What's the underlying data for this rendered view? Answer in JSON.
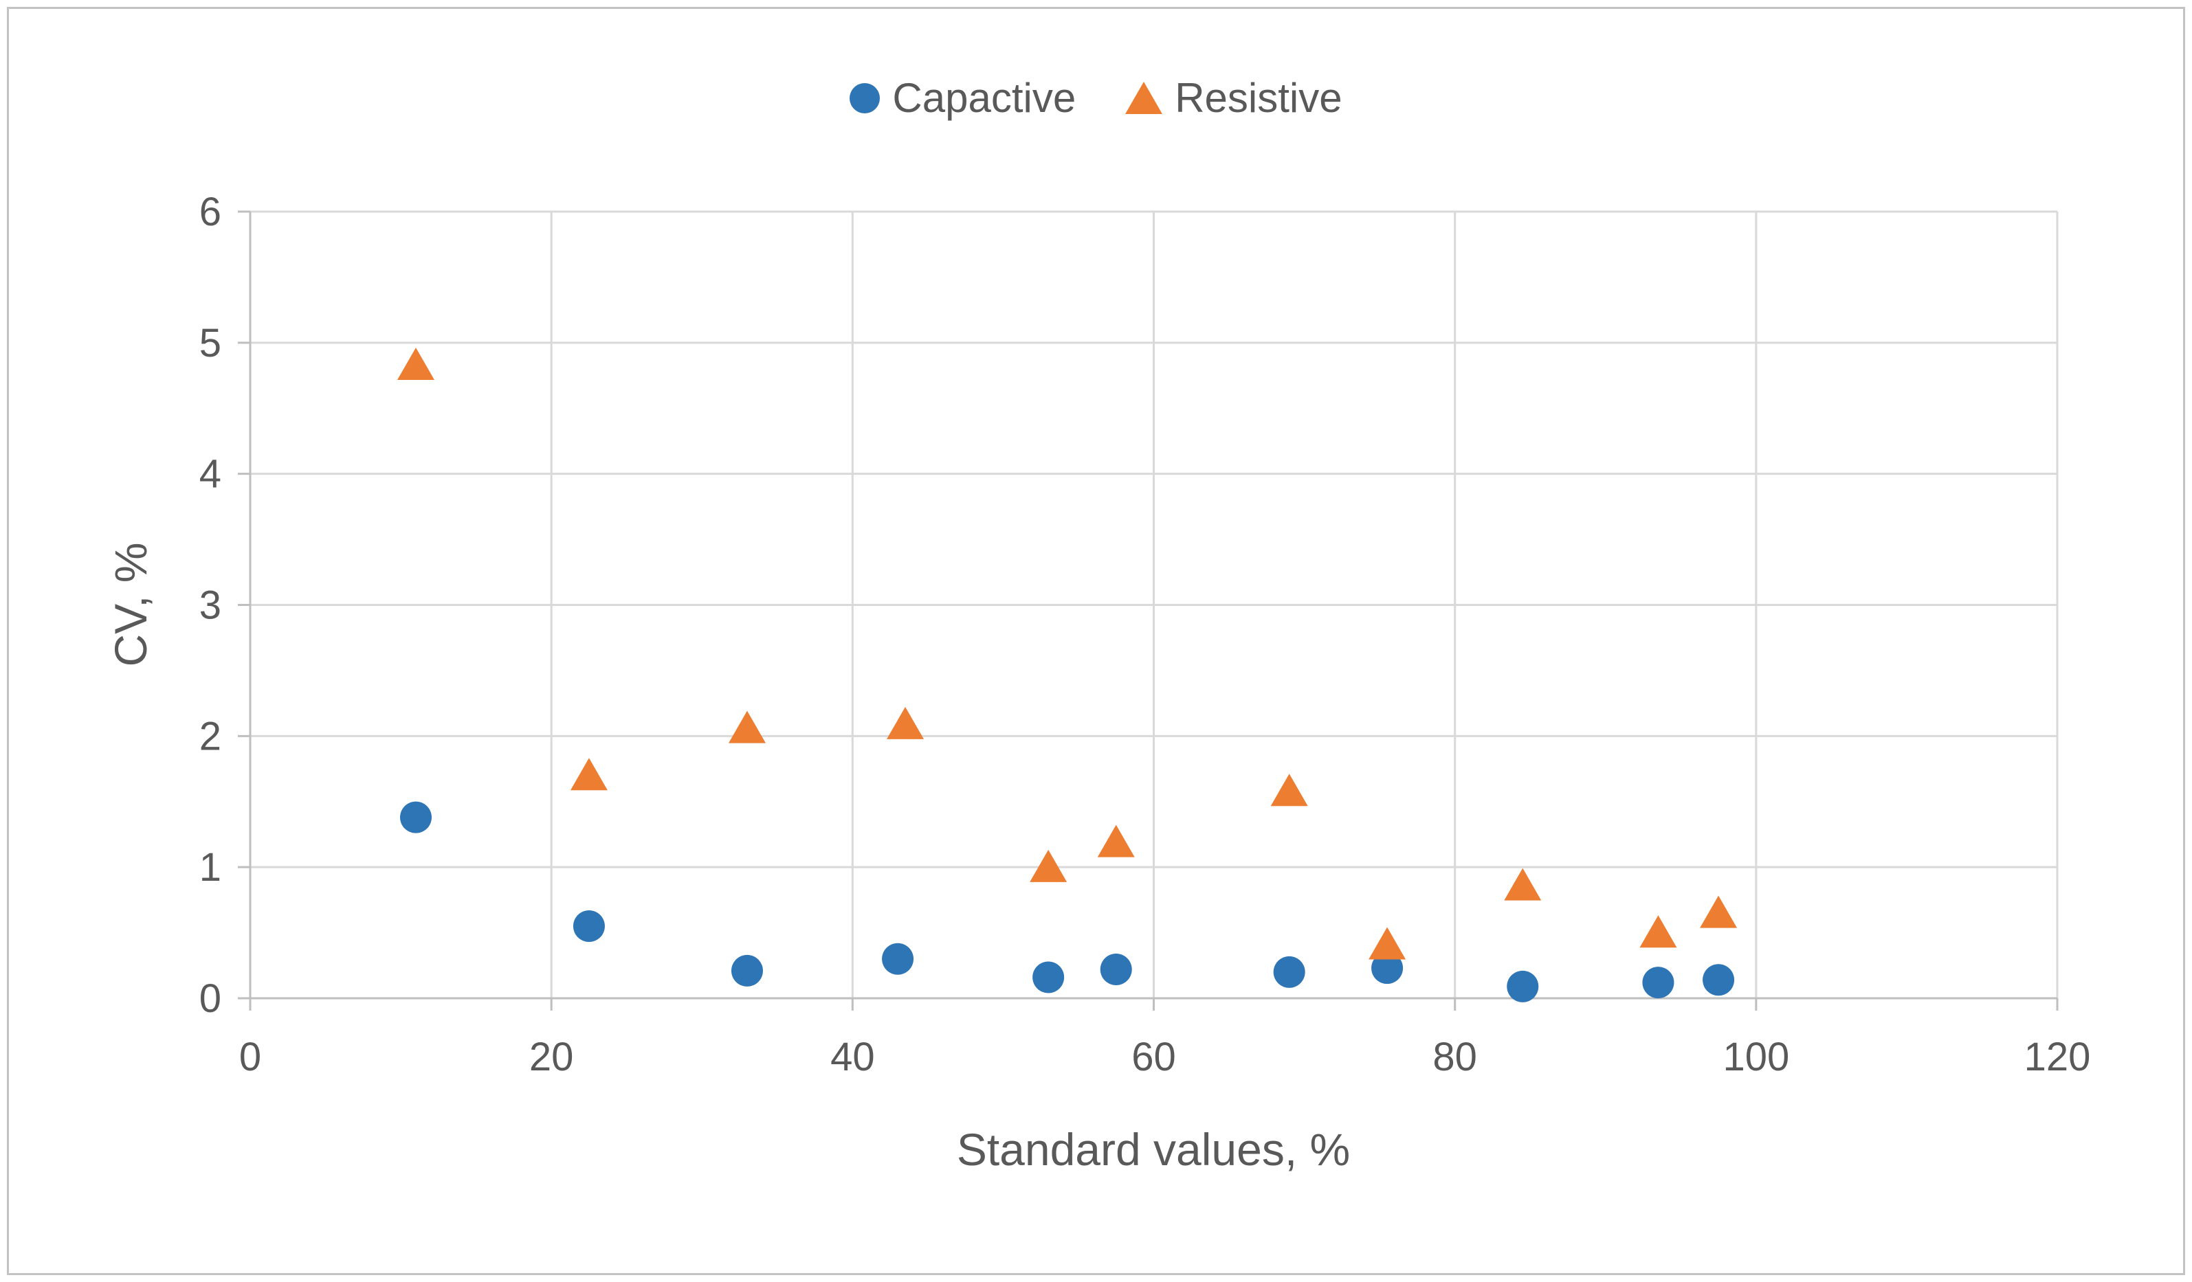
{
  "colors": {
    "grid": "#D9D9D9",
    "axis": "#BFBFBF",
    "text": "#595959",
    "frame": "#C3C3C3",
    "capacitive_blue": "#2E75B6",
    "resistive_orange": "#ED7D31"
  },
  "chart_data": {
    "type": "scatter",
    "title": "",
    "xlabel": "Standard values, %",
    "ylabel": "CV, %",
    "xlim": [
      0,
      120
    ],
    "ylim": [
      0,
      6
    ],
    "xticks": [
      0,
      20,
      40,
      60,
      80,
      100,
      120
    ],
    "yticks": [
      0,
      1,
      2,
      3,
      4,
      5,
      6
    ],
    "grid": true,
    "legend_position": "top-center",
    "series": [
      {
        "name": "Capactive",
        "marker": "circle",
        "color": "#2E75B6",
        "points": [
          [
            11,
            1.38
          ],
          [
            22.5,
            0.55
          ],
          [
            33,
            0.21
          ],
          [
            43,
            0.3
          ],
          [
            53,
            0.16
          ],
          [
            57.5,
            0.22
          ],
          [
            69,
            0.2
          ],
          [
            75.5,
            0.23
          ],
          [
            84.5,
            0.09
          ],
          [
            93.5,
            0.12
          ],
          [
            97.5,
            0.14
          ]
        ]
      },
      {
        "name": "Resistive",
        "marker": "triangle",
        "color": "#ED7D31",
        "points": [
          [
            11,
            4.8
          ],
          [
            22.5,
            1.67
          ],
          [
            33,
            2.03
          ],
          [
            43.5,
            2.06
          ],
          [
            53,
            0.97
          ],
          [
            57.5,
            1.16
          ],
          [
            69,
            1.55
          ],
          [
            75.5,
            0.38
          ],
          [
            84.5,
            0.83
          ],
          [
            93.5,
            0.47
          ],
          [
            97.5,
            0.62
          ]
        ]
      }
    ]
  }
}
